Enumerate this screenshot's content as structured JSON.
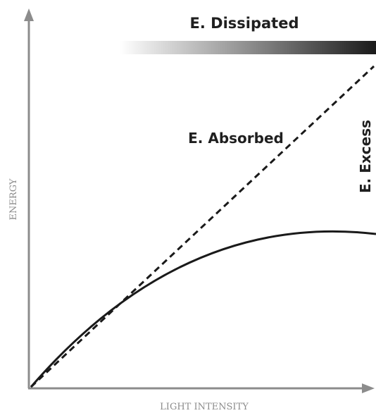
{
  "axes": {
    "x_label": "LIGHT INTENSITY",
    "y_label": "ENERGY"
  },
  "labels": {
    "dissipated": "E. Dissipated",
    "absorbed": "E. Absorbed",
    "excess": "E. Excess"
  },
  "colors": {
    "axis": "#8c8c8c",
    "curve": "#1a1a1a",
    "gradient_start": "#ffffff",
    "gradient_end": "#1a1a1a"
  },
  "diagram": {
    "absorbed_line_style": "dashed",
    "photochemistry_curve_style": "solid, saturating",
    "dissipated_bar": "white-to-black gradient"
  }
}
